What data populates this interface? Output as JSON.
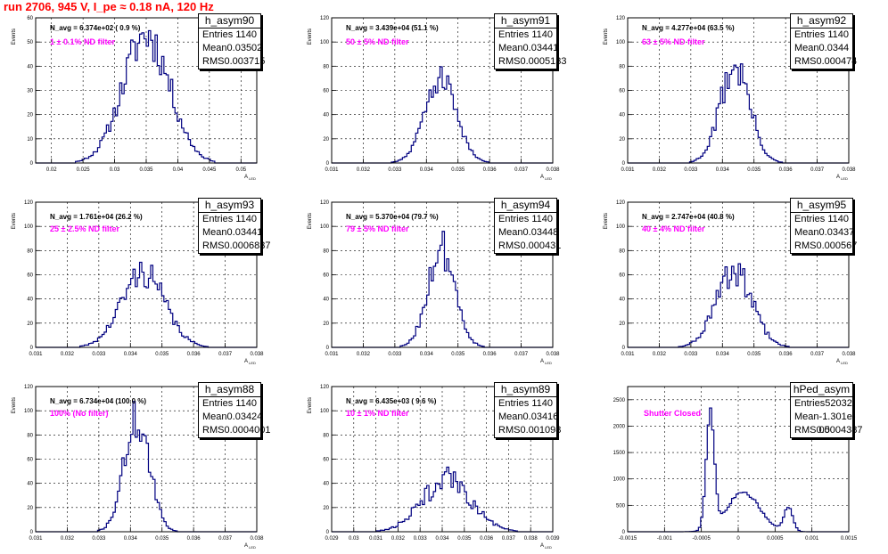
{
  "run_title": "run 2706,   945 V, I_pe ≈ 0.18 nA, 120 Hz",
  "chart_data": [
    {
      "type": "histogram",
      "stats_name": "h_asym90",
      "entries": "1140",
      "mean": "0.03502",
      "rms": "0.003715",
      "navg": "N_avg = 6.374e+02 ( 0.9 %)",
      "filter": "1 ± 0.1% ND filter",
      "ylabel": "Events",
      "xlabel": "A",
      "xlabel_sub": "LED",
      "xlim": [
        0.0175,
        0.0525
      ],
      "ylim": [
        0,
        60
      ],
      "xticks": [
        "0.02",
        "0.025",
        "0.03",
        "0.035",
        "0.04",
        "0.045",
        "0.05"
      ],
      "yticks": [
        "0",
        "10",
        "20",
        "30",
        "40",
        "50",
        "60"
      ],
      "hist": {
        "center": 0.035,
        "sigma": 0.0037,
        "peak": 53,
        "nbins": 100,
        "seed": 11,
        "noise": 0.18
      }
    },
    {
      "type": "histogram",
      "stats_name": "h_asym91",
      "entries": "1140",
      "mean": "0.03441",
      "rms": "0.0005133",
      "navg": "N_avg = 3.439e+04 (51.1 %)",
      "filter": "50 ± 5% ND filter",
      "ylabel": "Events",
      "xlabel": "A",
      "xlabel_sub": "LED",
      "xlim": [
        0.031,
        0.038
      ],
      "ylim": [
        0,
        120
      ],
      "xticks": [
        "0.031",
        "0.032",
        "0.033",
        "0.034",
        "0.035",
        "0.036",
        "0.037",
        "0.038"
      ],
      "yticks": [
        "0",
        "20",
        "40",
        "60",
        "80",
        "100",
        "120"
      ],
      "hist": {
        "center": 0.03445,
        "sigma": 0.0005,
        "peak": 70,
        "nbins": 100,
        "seed": 21,
        "noise": 0.15
      }
    },
    {
      "type": "histogram",
      "stats_name": "h_asym92",
      "entries": "1140",
      "mean": "0.0344",
      "rms": "0.000474",
      "navg": "N_avg = 4.277e+04 (63.5 %)",
      "filter": "63 ± 5% ND filter",
      "ylabel": "Events",
      "xlabel": "A",
      "xlabel_sub": "LED",
      "xlim": [
        0.031,
        0.038
      ],
      "ylim": [
        0,
        120
      ],
      "xticks": [
        "0.031",
        "0.032",
        "0.033",
        "0.034",
        "0.035",
        "0.036",
        "0.037",
        "0.038"
      ],
      "yticks": [
        "0",
        "20",
        "40",
        "60",
        "80",
        "100",
        "120"
      ],
      "hist": {
        "center": 0.0344,
        "sigma": 0.00047,
        "peak": 80,
        "nbins": 100,
        "seed": 31,
        "noise": 0.2
      }
    },
    {
      "type": "histogram",
      "stats_name": "h_asym93",
      "entries": "1140",
      "mean": "0.03441",
      "rms": "0.0006837",
      "navg": "N_avg = 1.761e+04 (26.2 %)",
      "filter": "25 ± 2.5% ND filter",
      "ylabel": "Events",
      "xlabel": "A",
      "xlabel_sub": "LED",
      "xlim": [
        0.031,
        0.038
      ],
      "ylim": [
        0,
        120
      ],
      "xticks": [
        "0.031",
        "0.032",
        "0.033",
        "0.034",
        "0.035",
        "0.036",
        "0.037",
        "0.038"
      ],
      "yticks": [
        "0",
        "20",
        "40",
        "60",
        "80",
        "100",
        "120"
      ],
      "hist": {
        "center": 0.0344,
        "sigma": 0.00068,
        "peak": 62,
        "nbins": 100,
        "seed": 41,
        "noise": 0.2
      }
    },
    {
      "type": "histogram",
      "stats_name": "h_asym94",
      "entries": "1140",
      "mean": "0.03448",
      "rms": "0.000431",
      "navg": "N_avg = 5.370e+04 (79.7 %)",
      "filter": "79 ± 5% ND filter",
      "ylabel": "Events",
      "xlabel": "A",
      "xlabel_sub": "LED",
      "xlim": [
        0.031,
        0.038
      ],
      "ylim": [
        0,
        120
      ],
      "xticks": [
        "0.031",
        "0.032",
        "0.033",
        "0.034",
        "0.035",
        "0.036",
        "0.037",
        "0.038"
      ],
      "yticks": [
        "0",
        "20",
        "40",
        "60",
        "80",
        "100",
        "120"
      ],
      "hist": {
        "center": 0.03448,
        "sigma": 0.00043,
        "peak": 82,
        "nbins": 100,
        "seed": 51,
        "noise": 0.2
      }
    },
    {
      "type": "histogram",
      "stats_name": "h_asym95",
      "entries": "1140",
      "mean": "0.03437",
      "rms": "0.000567",
      "navg": "N_avg = 2.747e+04 (40.8 %)",
      "filter": "40 ± 4% ND filter",
      "ylabel": "Events",
      "xlabel": "A",
      "xlabel_sub": "LED",
      "xlim": [
        0.031,
        0.038
      ],
      "ylim": [
        0,
        120
      ],
      "xticks": [
        "0.031",
        "0.032",
        "0.033",
        "0.034",
        "0.035",
        "0.036",
        "0.037",
        "0.038"
      ],
      "yticks": [
        "0",
        "20",
        "40",
        "60",
        "80",
        "100",
        "120"
      ],
      "hist": {
        "center": 0.03437,
        "sigma": 0.00057,
        "peak": 62,
        "nbins": 100,
        "seed": 61,
        "noise": 0.22
      }
    },
    {
      "type": "histogram",
      "stats_name": "h_asym88",
      "entries": "1140",
      "mean": "0.03424",
      "rms": "0.0004001",
      "navg": "N_avg = 6.734e+04 (100.0 %)",
      "filter": "100% (No filter)",
      "ylabel": "Events",
      "xlabel": "A",
      "xlabel_sub": "LED",
      "xlim": [
        0.031,
        0.038
      ],
      "ylim": [
        0,
        120
      ],
      "xticks": [
        "0.031",
        "0.032",
        "0.033",
        "0.034",
        "0.035",
        "0.036",
        "0.037",
        "0.038"
      ],
      "yticks": [
        "0",
        "20",
        "40",
        "60",
        "80",
        "100",
        "120"
      ],
      "hist": {
        "center": 0.0342,
        "sigma": 0.0004,
        "peak": 93,
        "nbins": 100,
        "seed": 71,
        "noise": 0.2
      }
    },
    {
      "type": "histogram",
      "stats_name": "h_asym89",
      "entries": "1140",
      "mean": "0.03416",
      "rms": "0.001098",
      "navg": "N_avg = 6.435e+03 ( 9.6 %)",
      "filter": "10 ± 1% ND filter",
      "ylabel": "Events",
      "xlabel": "A",
      "xlabel_sub": "LED",
      "xlim": [
        0.029,
        0.039
      ],
      "ylim": [
        0,
        120
      ],
      "xticks": [
        "0.029",
        "0.03",
        "0.031",
        "0.032",
        "0.033",
        "0.034",
        "0.035",
        "0.036",
        "0.037",
        "0.038",
        "0.039"
      ],
      "yticks": [
        "0",
        "20",
        "40",
        "60",
        "80",
        "100",
        "120"
      ],
      "hist": {
        "center": 0.0342,
        "sigma": 0.0011,
        "peak": 43,
        "nbins": 100,
        "seed": 81,
        "noise": 0.25
      }
    },
    {
      "type": "histogram",
      "stats_name": "hPed_asym",
      "entries": "52032",
      "mean": "-1.301e-05",
      "rms": "0.0004387",
      "navg": "",
      "filter": "Shutter Closed",
      "ylabel": "",
      "xlabel": "",
      "xlabel_sub": "",
      "xlim": [
        -0.0015,
        0.0015
      ],
      "ylim": [
        0,
        2750
      ],
      "xticks": [
        "-0.0015",
        "-0.001",
        "-0.0005",
        "0",
        "0.0005",
        "0.001",
        "0.0015"
      ],
      "yticks": [
        "0",
        "500",
        "1000",
        "1500",
        "2000",
        "2500"
      ],
      "hist": {
        "peaks": [
          {
            "center": -0.00038,
            "sigma": 5.5e-05,
            "amp": 2150
          },
          {
            "center": 7e-05,
            "sigma": 0.00022,
            "amp": 750
          },
          {
            "center": 0.00068,
            "sigma": 6e-05,
            "amp": 450
          }
        ],
        "nbins": 100,
        "seed": 91,
        "noise": 0.05
      }
    }
  ]
}
